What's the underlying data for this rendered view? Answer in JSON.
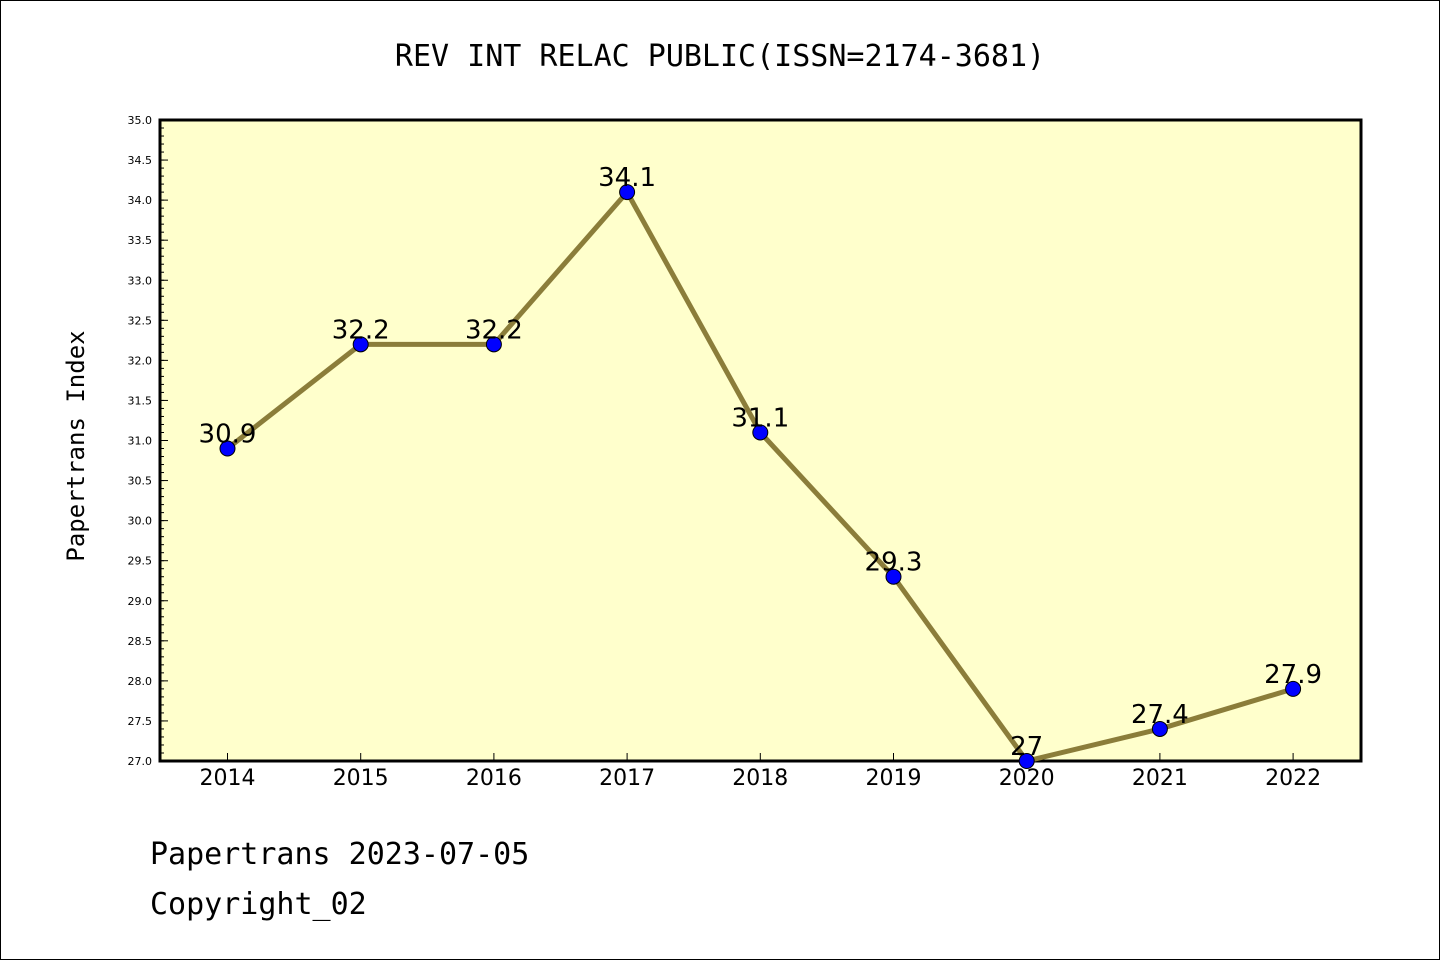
{
  "chart_data": {
    "type": "line",
    "title": "REV INT RELAC PUBLIC(ISSN=2174-3681)",
    "xlabel": "",
    "ylabel": "Papertrans Index",
    "categories": [
      "2014",
      "2015",
      "2016",
      "2017",
      "2018",
      "2019",
      "2020",
      "2021",
      "2022"
    ],
    "series": [
      {
        "values": [
          30.9,
          32.2,
          32.2,
          34.1,
          31.1,
          29.3,
          27.0,
          27.4,
          27.9
        ]
      }
    ],
    "data_labels": [
      "30.9",
      "32.2",
      "32.2",
      "34.1",
      "31.1",
      "29.3",
      "27",
      "27.4",
      "27.9"
    ],
    "ylim": [
      27.0,
      35.0
    ],
    "yticks": [
      "27.0",
      "27.5",
      "28.0",
      "28.5",
      "29.0",
      "29.5",
      "30.0",
      "30.5",
      "31.0",
      "31.5",
      "32.0",
      "32.5",
      "33.0",
      "33.5",
      "34.0",
      "34.5",
      "35.0"
    ],
    "grid": false,
    "colors": {
      "plot_background": "#ffffcc",
      "line": "#8b7d3a",
      "marker": "#0000ff"
    }
  },
  "footer": {
    "line1": "Papertrans 2023-07-05",
    "line2": "Copyright_02"
  }
}
